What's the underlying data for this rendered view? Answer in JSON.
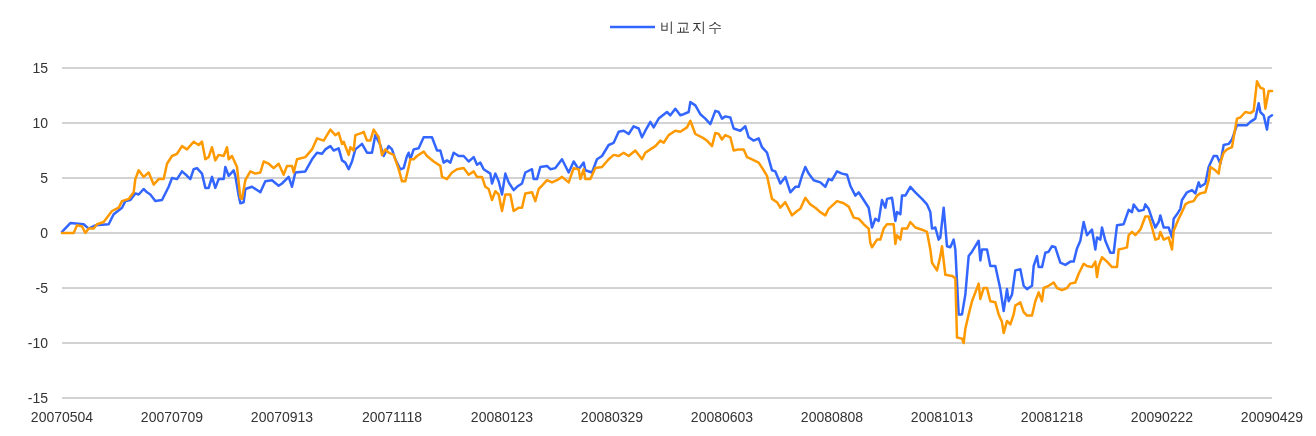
{
  "chart_data": {
    "type": "line",
    "legend": "top",
    "grid": "y",
    "xlim": [
      "2007-05-04",
      "2009-04-29"
    ],
    "xticks": [
      {
        "value": "2007-05-04",
        "label": "20070504"
      },
      {
        "value": "2007-07-09",
        "label": "20070709"
      },
      {
        "value": "2007-09-13",
        "label": "20070913"
      },
      {
        "value": "2007-11-18",
        "label": "20071118"
      },
      {
        "value": "2008-01-23",
        "label": "20080123"
      },
      {
        "value": "2008-03-29",
        "label": "20080329"
      },
      {
        "value": "2008-06-03",
        "label": "20080603"
      },
      {
        "value": "2008-08-08",
        "label": "20080808"
      },
      {
        "value": "2008-10-13",
        "label": "20081013"
      },
      {
        "value": "2008-12-18",
        "label": "20081218"
      },
      {
        "value": "2009-02-22",
        "label": "20090222"
      },
      {
        "value": "2009-04-29",
        "label": "20090429"
      }
    ],
    "ylim": [
      -15,
      15
    ],
    "yticks": [
      -15,
      -10,
      -5,
      0,
      5,
      10,
      15
    ],
    "series": [
      {
        "name": "비교지수",
        "color": "#3366ff",
        "x": [
          "2007-05-04",
          "2007-05-09",
          "2007-05-17",
          "2007-05-20",
          "2007-05-24",
          "2007-06-01",
          "2007-06-04",
          "2007-06-09",
          "2007-06-11",
          "2007-06-14",
          "2007-06-17",
          "2007-06-19",
          "2007-06-22",
          "2007-06-24",
          "2007-06-26",
          "2007-06-29",
          "2007-07-03",
          "2007-07-07",
          "2007-07-09",
          "2007-07-12",
          "2007-07-15",
          "2007-07-18",
          "2007-07-20",
          "2007-07-22",
          "2007-07-24",
          "2007-07-27",
          "2007-07-29",
          "2007-07-31",
          "2007-08-02",
          "2007-08-04",
          "2007-08-06",
          "2007-08-09",
          "2007-08-10",
          "2007-08-12",
          "2007-08-15",
          "2007-08-16",
          "2007-08-18",
          "2007-08-19",
          "2007-08-21",
          "2007-08-22",
          "2007-08-26",
          "2007-08-31",
          "2007-09-03",
          "2007-09-07",
          "2007-09-11",
          "2007-09-13",
          "2007-09-17",
          "2007-09-19",
          "2007-09-21",
          "2007-09-27",
          "2007-10-01",
          "2007-10-04",
          "2007-10-07",
          "2007-10-09",
          "2007-10-12",
          "2007-10-14",
          "2007-10-17",
          "2007-10-19",
          "2007-10-21",
          "2007-10-23",
          "2007-10-25",
          "2007-10-27",
          "2007-10-31",
          "2007-11-03",
          "2007-11-06",
          "2007-11-08",
          "2007-11-11",
          "2007-11-13",
          "2007-11-16",
          "2007-11-18",
          "2007-11-20",
          "2007-11-23",
          "2007-11-25",
          "2007-11-27",
          "2007-11-28",
          "2007-11-29",
          "2007-12-01",
          "2007-12-04",
          "2007-12-07",
          "2007-12-12",
          "2007-12-15",
          "2007-12-17",
          "2007-12-19",
          "2007-12-21",
          "2007-12-23",
          "2007-12-25",
          "2007-12-28",
          "2007-12-31",
          "2008-01-03",
          "2008-01-06",
          "2008-01-08",
          "2008-01-10",
          "2008-01-12",
          "2008-01-16",
          "2008-01-17",
          "2008-01-19",
          "2008-01-21",
          "2008-01-23",
          "2008-01-25",
          "2008-01-27",
          "2008-01-30",
          "2008-02-01",
          "2008-02-04",
          "2008-02-06",
          "2008-02-10",
          "2008-02-11",
          "2008-02-13",
          "2008-02-15",
          "2008-02-19",
          "2008-02-21",
          "2008-02-24",
          "2008-02-28",
          "2008-03-03",
          "2008-03-06",
          "2008-03-09",
          "2008-03-12",
          "2008-03-13",
          "2008-03-17",
          "2008-03-20",
          "2008-03-23",
          "2008-03-27",
          "2008-03-30",
          "2008-04-02",
          "2008-04-05",
          "2008-04-08",
          "2008-04-11",
          "2008-04-14",
          "2008-04-16",
          "2008-04-18",
          "2008-04-21",
          "2008-04-23",
          "2008-04-26",
          "2008-05-01",
          "2008-05-03",
          "2008-05-06",
          "2008-05-09",
          "2008-05-11",
          "2008-05-14",
          "2008-05-15",
          "2008-05-18",
          "2008-05-21",
          "2008-05-24",
          "2008-05-27",
          "2008-05-30",
          "2008-06-01",
          "2008-06-03",
          "2008-06-05",
          "2008-06-08",
          "2008-06-10",
          "2008-06-14",
          "2008-06-17",
          "2008-06-19",
          "2008-06-22",
          "2008-06-25",
          "2008-06-27",
          "2008-06-30",
          "2008-07-03",
          "2008-07-05",
          "2008-07-08",
          "2008-07-11",
          "2008-07-14",
          "2008-07-17",
          "2008-07-19",
          "2008-07-21",
          "2008-07-23",
          "2008-07-25",
          "2008-07-28",
          "2008-08-01",
          "2008-08-04",
          "2008-08-06",
          "2008-08-08",
          "2008-08-11",
          "2008-08-14",
          "2008-08-17",
          "2008-08-19",
          "2008-08-22",
          "2008-08-24",
          "2008-08-27",
          "2008-08-30",
          "2008-09-01",
          "2008-09-03",
          "2008-09-05",
          "2008-09-07",
          "2008-09-09",
          "2008-09-10",
          "2008-09-13",
          "2008-09-15",
          "2008-09-16",
          "2008-09-18",
          "2008-09-19",
          "2008-09-21",
          "2008-09-24",
          "2008-09-27",
          "2008-10-01",
          "2008-10-04",
          "2008-10-06",
          "2008-10-07",
          "2008-10-09",
          "2008-10-11",
          "2008-10-12",
          "2008-10-14",
          "2008-10-16",
          "2008-10-18",
          "2008-10-20",
          "2008-10-21",
          "2008-10-23",
          "2008-10-25",
          "2008-10-27",
          "2008-10-29",
          "2008-10-31",
          "2008-11-04",
          "2008-11-05",
          "2008-11-06",
          "2008-11-09",
          "2008-11-11",
          "2008-11-14",
          "2008-11-17",
          "2008-11-19",
          "2008-11-21",
          "2008-11-22",
          "2008-11-24",
          "2008-11-26",
          "2008-11-29",
          "2008-12-01",
          "2008-12-03",
          "2008-12-06",
          "2008-12-07",
          "2008-12-09",
          "2008-12-10",
          "2008-12-12",
          "2008-12-14",
          "2008-12-16",
          "2008-12-18",
          "2008-12-20",
          "2008-12-23",
          "2008-12-26",
          "2008-12-29",
          "2008-12-31",
          "2009-01-02",
          "2009-01-04",
          "2009-01-06",
          "2009-01-08",
          "2009-01-11",
          "2009-01-13",
          "2009-01-14",
          "2009-01-16",
          "2009-01-17",
          "2009-01-19",
          "2009-01-22",
          "2009-01-24",
          "2009-01-26",
          "2009-01-30",
          "2009-02-02",
          "2009-02-04",
          "2009-02-05",
          "2009-02-08",
          "2009-02-11",
          "2009-02-12",
          "2009-02-14",
          "2009-02-16",
          "2009-02-18",
          "2009-02-20",
          "2009-02-21",
          "2009-02-23",
          "2009-02-26",
          "2009-02-28",
          "2009-03-01",
          "2009-03-03",
          "2009-03-05",
          "2009-03-06",
          "2009-03-09",
          "2009-03-12",
          "2009-03-14",
          "2009-03-16",
          "2009-03-17",
          "2009-03-20",
          "2009-03-22",
          "2009-03-25",
          "2009-03-27",
          "2009-03-29",
          "2009-03-31",
          "2009-04-03",
          "2009-04-05",
          "2009-04-08",
          "2009-04-12",
          "2009-04-14",
          "2009-04-16",
          "2009-04-19",
          "2009-04-21",
          "2009-04-22",
          "2009-04-24",
          "2009-04-26",
          "2009-04-27",
          "2009-04-29"
        ],
        "values": [
          0.1,
          0.9,
          0.8,
          0.4,
          0.7,
          0.8,
          1.7,
          2.3,
          2.9,
          3.0,
          3.6,
          3.5,
          4.0,
          3.7,
          3.5,
          2.9,
          3.0,
          4.2,
          5.0,
          4.9,
          5.6,
          5.2,
          4.9,
          5.8,
          5.9,
          5.4,
          4.1,
          4.1,
          5.1,
          4.1,
          4.9,
          4.9,
          6.0,
          5.2,
          5.7,
          5.2,
          3.4,
          2.7,
          2.8,
          4.0,
          4.2,
          3.7,
          4.7,
          4.8,
          4.3,
          4.5,
          5.1,
          4.2,
          5.5,
          5.6,
          6.7,
          7.3,
          7.2,
          7.6,
          7.9,
          7.5,
          7.7,
          6.6,
          6.4,
          5.8,
          6.5,
          7.6,
          8.1,
          7.3,
          7.3,
          8.9,
          8.0,
          7.0,
          7.9,
          7.6,
          6.7,
          5.8,
          5.9,
          7.0,
          7.3,
          6.7,
          7.6,
          7.7,
          8.7,
          8.7,
          7.5,
          7.5,
          6.4,
          6.6,
          6.4,
          7.3,
          7.0,
          7.0,
          6.5,
          6.9,
          6.2,
          6.4,
          5.8,
          5.4,
          4.5,
          5.4,
          4.7,
          3.5,
          5.4,
          4.6,
          3.9,
          4.2,
          4.5,
          5.5,
          5.8,
          4.9,
          4.9,
          6.0,
          6.1,
          5.8,
          5.9,
          6.7,
          5.5,
          6.5,
          5.8,
          6.4,
          5.7,
          5.5,
          6.7,
          7.0,
          8.0,
          8.2,
          9.2,
          9.3,
          9.0,
          9.7,
          9.5,
          8.7,
          9.3,
          10.1,
          9.6,
          10.4,
          11.0,
          10.7,
          11.3,
          10.7,
          10.8,
          11.0,
          11.9,
          11.6,
          10.8,
          10.4,
          9.9,
          11.1,
          11.0,
          10.4,
          10.6,
          10.5,
          9.5,
          9.3,
          9.7,
          8.7,
          8.4,
          8.6,
          7.8,
          7.3,
          5.7,
          5.6,
          4.5,
          5.1,
          3.7,
          4.2,
          4.2,
          5.2,
          6.0,
          5.4,
          4.8,
          4.6,
          4.2,
          4.9,
          4.8,
          5.6,
          5.4,
          5.3,
          4.3,
          3.4,
          3.7,
          3.0,
          2.3,
          0.5,
          1.3,
          1.1,
          3.0,
          2.3,
          3.1,
          3.2,
          1.1,
          1.9,
          1.7,
          3.4,
          3.4,
          4.2,
          3.7,
          3.1,
          2.6,
          1.9,
          0.4,
          0.5,
          -0.6,
          -0.4,
          2.3,
          -1.2,
          -1.3,
          -0.6,
          -1.5,
          -7.4,
          -7.4,
          -5.6,
          -2.1,
          -1.7,
          -0.7,
          -2.5,
          -1.5,
          -1.5,
          -3.0,
          -3.0,
          -5.1,
          -7.1,
          -5.1,
          -6.2,
          -5.6,
          -3.4,
          -3.3,
          -4.8,
          -5.1,
          -4.8,
          -3.0,
          -2.1,
          -3.1,
          -3.1,
          -1.8,
          -1.7,
          -1.2,
          -1.3,
          -2.7,
          -2.9,
          -2.6,
          -2.6,
          -1.4,
          -0.7,
          1.0,
          -0.2,
          0.3,
          -1.5,
          -0.4,
          -0.6,
          0.5,
          -0.7,
          -1.8,
          -1.8,
          0.7,
          0.8,
          2.1,
          1.9,
          2.6,
          2.0,
          2.1,
          2.6,
          2.2,
          1.3,
          0.5,
          1.0,
          1.6,
          0.5,
          0.5,
          -0.4,
          1.3,
          1.7,
          2.2,
          3.0,
          3.7,
          3.9,
          3.6,
          4.6,
          4.2,
          4.5,
          6.0,
          7.0,
          7.0,
          6.3,
          8.0,
          8.1,
          8.5,
          9.8,
          9.8,
          9.8,
          10.1,
          10.4,
          11.8,
          11.0,
          10.7,
          9.4,
          10.5,
          10.7
        ]
      },
      {
        "color": "#ff9900",
        "x": [
          "2007-05-04",
          "2007-05-11",
          "2007-05-13",
          "2007-05-16",
          "2007-05-18",
          "2007-05-20",
          "2007-05-23",
          "2007-05-25",
          "2007-05-29",
          "2007-06-03",
          "2007-06-07",
          "2007-06-09",
          "2007-06-13",
          "2007-06-16",
          "2007-06-17",
          "2007-06-19",
          "2007-06-22",
          "2007-06-25",
          "2007-06-28",
          "2007-07-01",
          "2007-07-04",
          "2007-07-06",
          "2007-07-09",
          "2007-07-12",
          "2007-07-15",
          "2007-07-18",
          "2007-07-22",
          "2007-07-25",
          "2007-07-27",
          "2007-07-29",
          "2007-07-31",
          "2007-08-02",
          "2007-08-04",
          "2007-08-06",
          "2007-08-09",
          "2007-08-11",
          "2007-08-12",
          "2007-08-14",
          "2007-08-17",
          "2007-08-19",
          "2007-08-20",
          "2007-08-22",
          "2007-08-25",
          "2007-08-28",
          "2007-08-31",
          "2007-09-02",
          "2007-09-05",
          "2007-09-08",
          "2007-09-11",
          "2007-09-14",
          "2007-09-16",
          "2007-09-19",
          "2007-09-20",
          "2007-09-22",
          "2007-09-27",
          "2007-10-01",
          "2007-10-04",
          "2007-10-08",
          "2007-10-10",
          "2007-10-12",
          "2007-10-15",
          "2007-10-17",
          "2007-10-19",
          "2007-10-20",
          "2007-10-23",
          "2007-10-24",
          "2007-10-26",
          "2007-10-27",
          "2007-10-31",
          "2007-11-01",
          "2007-11-03",
          "2007-11-05",
          "2007-11-07",
          "2007-11-10",
          "2007-11-12",
          "2007-11-14",
          "2007-11-16",
          "2007-11-19",
          "2007-11-22",
          "2007-11-24",
          "2007-11-26",
          "2007-11-28",
          "2007-11-29",
          "2007-12-01",
          "2007-12-03",
          "2007-12-07",
          "2007-12-09",
          "2007-12-13",
          "2007-12-17",
          "2007-12-18",
          "2007-12-21",
          "2007-12-24",
          "2007-12-27",
          "2007-12-31",
          "2008-01-03",
          "2008-01-06",
          "2008-01-08",
          "2008-01-11",
          "2008-01-13",
          "2008-01-15",
          "2008-01-17",
          "2008-01-19",
          "2008-01-21",
          "2008-01-23",
          "2008-01-25",
          "2008-01-28",
          "2008-01-30",
          "2008-02-02",
          "2008-02-04",
          "2008-02-06",
          "2008-02-10",
          "2008-02-12",
          "2008-02-14",
          "2008-02-16",
          "2008-02-19",
          "2008-02-22",
          "2008-02-25",
          "2008-02-28",
          "2008-03-03",
          "2008-03-06",
          "2008-03-09",
          "2008-03-10",
          "2008-03-12",
          "2008-03-13",
          "2008-03-16",
          "2008-03-19",
          "2008-03-23",
          "2008-03-27",
          "2008-03-30",
          "2008-04-02",
          "2008-04-05",
          "2008-04-08",
          "2008-04-12",
          "2008-04-16",
          "2008-04-18",
          "2008-04-21",
          "2008-04-24",
          "2008-04-27",
          "2008-04-29",
          "2008-05-02",
          "2008-05-06",
          "2008-05-09",
          "2008-05-13",
          "2008-05-15",
          "2008-05-18",
          "2008-05-22",
          "2008-05-25",
          "2008-05-28",
          "2008-05-30",
          "2008-06-01",
          "2008-06-03",
          "2008-06-05",
          "2008-06-08",
          "2008-06-10",
          "2008-06-13",
          "2008-06-16",
          "2008-06-18",
          "2008-06-21",
          "2008-06-25",
          "2008-06-28",
          "2008-06-30",
          "2008-07-03",
          "2008-07-06",
          "2008-07-08",
          "2008-07-11",
          "2008-07-15",
          "2008-07-18",
          "2008-07-20",
          "2008-07-23",
          "2008-07-26",
          "2008-07-29",
          "2008-08-01",
          "2008-08-04",
          "2008-08-06",
          "2008-08-11",
          "2008-08-15",
          "2008-08-18",
          "2008-08-21",
          "2008-08-24",
          "2008-08-27",
          "2008-08-30",
          "2008-08-31",
          "2008-09-01",
          "2008-09-04",
          "2008-09-06",
          "2008-09-08",
          "2008-09-10",
          "2008-09-14",
          "2008-09-15",
          "2008-09-16",
          "2008-09-18",
          "2008-09-19",
          "2008-09-22",
          "2008-09-24",
          "2008-09-27",
          "2008-10-01",
          "2008-10-04",
          "2008-10-06",
          "2008-10-07",
          "2008-10-10",
          "2008-10-12",
          "2008-10-13",
          "2008-10-15",
          "2008-10-19",
          "2008-10-21",
          "2008-10-22",
          "2008-10-25",
          "2008-10-26",
          "2008-10-27",
          "2008-10-29",
          "2008-10-31",
          "2008-11-04",
          "2008-11-05",
          "2008-11-07",
          "2008-11-09",
          "2008-11-11",
          "2008-11-14",
          "2008-11-16",
          "2008-11-18",
          "2008-11-19",
          "2008-11-21",
          "2008-11-23",
          "2008-11-25",
          "2008-11-26",
          "2008-11-29",
          "2008-12-01",
          "2008-12-03",
          "2008-12-06",
          "2008-12-08",
          "2008-12-10",
          "2008-12-12",
          "2008-12-13",
          "2008-12-16",
          "2008-12-19",
          "2008-12-21",
          "2008-12-24",
          "2008-12-27",
          "2008-12-29",
          "2009-01-01",
          "2009-01-03",
          "2009-01-06",
          "2009-01-08",
          "2009-01-11",
          "2009-01-13",
          "2009-01-14",
          "2009-01-15",
          "2009-01-17",
          "2009-01-20",
          "2009-01-23",
          "2009-01-26",
          "2009-01-27",
          "2009-01-30",
          "2009-02-01",
          "2009-02-02",
          "2009-02-04",
          "2009-02-06",
          "2009-02-09",
          "2009-02-12",
          "2009-02-14",
          "2009-02-16",
          "2009-02-18",
          "2009-02-20",
          "2009-02-21",
          "2009-02-23",
          "2009-02-26",
          "2009-02-28",
          "2009-03-01",
          "2009-03-04",
          "2009-03-06",
          "2009-03-08",
          "2009-03-10",
          "2009-03-13",
          "2009-03-15",
          "2009-03-17",
          "2009-03-20",
          "2009-03-22",
          "2009-03-23",
          "2009-03-26",
          "2009-03-28",
          "2009-03-29",
          "2009-03-31",
          "2009-04-02",
          "2009-04-05",
          "2009-04-06",
          "2009-04-08",
          "2009-04-10",
          "2009-04-13",
          "2009-04-16",
          "2009-04-18",
          "2009-04-20",
          "2009-04-22",
          "2009-04-24",
          "2009-04-25",
          "2009-04-27",
          "2009-04-29"
        ],
        "values": [
          0.0,
          0.0,
          0.7,
          0.6,
          0.0,
          0.4,
          0.4,
          0.8,
          1.0,
          2.0,
          2.3,
          2.9,
          3.1,
          3.7,
          4.9,
          5.7,
          5.1,
          5.5,
          4.4,
          4.9,
          4.9,
          6.3,
          7.0,
          7.2,
          7.9,
          7.6,
          8.3,
          8.0,
          8.3,
          6.7,
          6.9,
          7.8,
          6.6,
          7.1,
          7.0,
          7.8,
          6.7,
          7.0,
          6.0,
          3.2,
          3.1,
          4.8,
          5.6,
          5.4,
          5.5,
          6.5,
          6.3,
          5.9,
          6.3,
          5.3,
          6.1,
          6.1,
          5.5,
          6.7,
          6.9,
          7.6,
          8.6,
          8.4,
          8.9,
          9.4,
          8.9,
          9.1,
          8.1,
          8.3,
          7.1,
          7.8,
          7.5,
          8.9,
          9.1,
          9.2,
          8.4,
          8.4,
          9.4,
          8.7,
          7.1,
          7.6,
          7.3,
          7.1,
          5.8,
          4.7,
          4.7,
          6.0,
          6.7,
          6.7,
          7.0,
          7.4,
          7.0,
          6.5,
          6.1,
          5.1,
          4.9,
          5.5,
          5.8,
          5.9,
          5.3,
          5.6,
          5.1,
          5.1,
          4.2,
          4.0,
          3.0,
          3.8,
          3.5,
          2.0,
          3.5,
          3.5,
          2.0,
          2.3,
          2.3,
          3.6,
          3.7,
          2.9,
          4.0,
          4.3,
          4.8,
          4.6,
          4.8,
          5.1,
          4.6,
          5.9,
          5.8,
          4.9,
          5.8,
          4.9,
          4.9,
          5.9,
          6.0,
          6.7,
          7.1,
          7.0,
          7.3,
          7.0,
          7.5,
          6.7,
          7.3,
          7.6,
          7.9,
          8.4,
          8.2,
          8.9,
          9.3,
          9.2,
          9.6,
          10.2,
          9.0,
          8.7,
          8.4,
          7.9,
          9.1,
          9.0,
          8.5,
          8.9,
          8.7,
          7.5,
          7.6,
          7.6,
          6.9,
          6.7,
          6.4,
          5.7,
          5.2,
          3.1,
          2.8,
          2.3,
          2.8,
          1.6,
          2.0,
          2.2,
          3.2,
          2.6,
          2.3,
          1.9,
          1.6,
          2.2,
          2.9,
          2.7,
          2.4,
          1.4,
          1.3,
          0.8,
          0.4,
          -0.9,
          -1.3,
          -0.6,
          -0.6,
          0.4,
          0.8,
          0.8,
          -1.0,
          -0.2,
          -0.6,
          0.4,
          0.4,
          1.0,
          0.5,
          0.3,
          0.1,
          -1.5,
          -2.7,
          -3.4,
          -2.1,
          -1.2,
          -3.8,
          -3.9,
          -4.1,
          -9.5,
          -9.6,
          -10.0,
          -8.7,
          -7.4,
          -6.2,
          -4.6,
          -6.0,
          -5.0,
          -5.0,
          -6.2,
          -6.3,
          -7.4,
          -8.1,
          -9.1,
          -8.0,
          -8.3,
          -7.4,
          -6.6,
          -6.3,
          -7.2,
          -7.5,
          -7.5,
          -6.2,
          -5.4,
          -6.2,
          -5.0,
          -4.8,
          -4.5,
          -5.0,
          -5.2,
          -5.0,
          -4.6,
          -4.5,
          -3.7,
          -2.8,
          -3.0,
          -3.1,
          -2.6,
          -4.0,
          -3.0,
          -2.2,
          -2.6,
          -3.1,
          -3.1,
          -1.5,
          -1.4,
          -1.3,
          -0.2,
          0.1,
          -0.2,
          0.3,
          1.5,
          1.5,
          0.5,
          -0.6,
          -0.5,
          0.1,
          -0.6,
          -0.4,
          -1.5,
          0.2,
          1.3,
          1.9,
          2.6,
          2.8,
          2.9,
          3.4,
          3.6,
          3.7,
          4.8,
          6.0,
          5.7,
          5.4,
          6.4,
          7.3,
          7.6,
          7.8,
          8.7,
          10.4,
          10.5,
          11.0,
          10.9,
          11.1,
          13.8,
          13.2,
          13.1,
          11.3,
          12.9,
          12.9
        ]
      }
    ]
  }
}
